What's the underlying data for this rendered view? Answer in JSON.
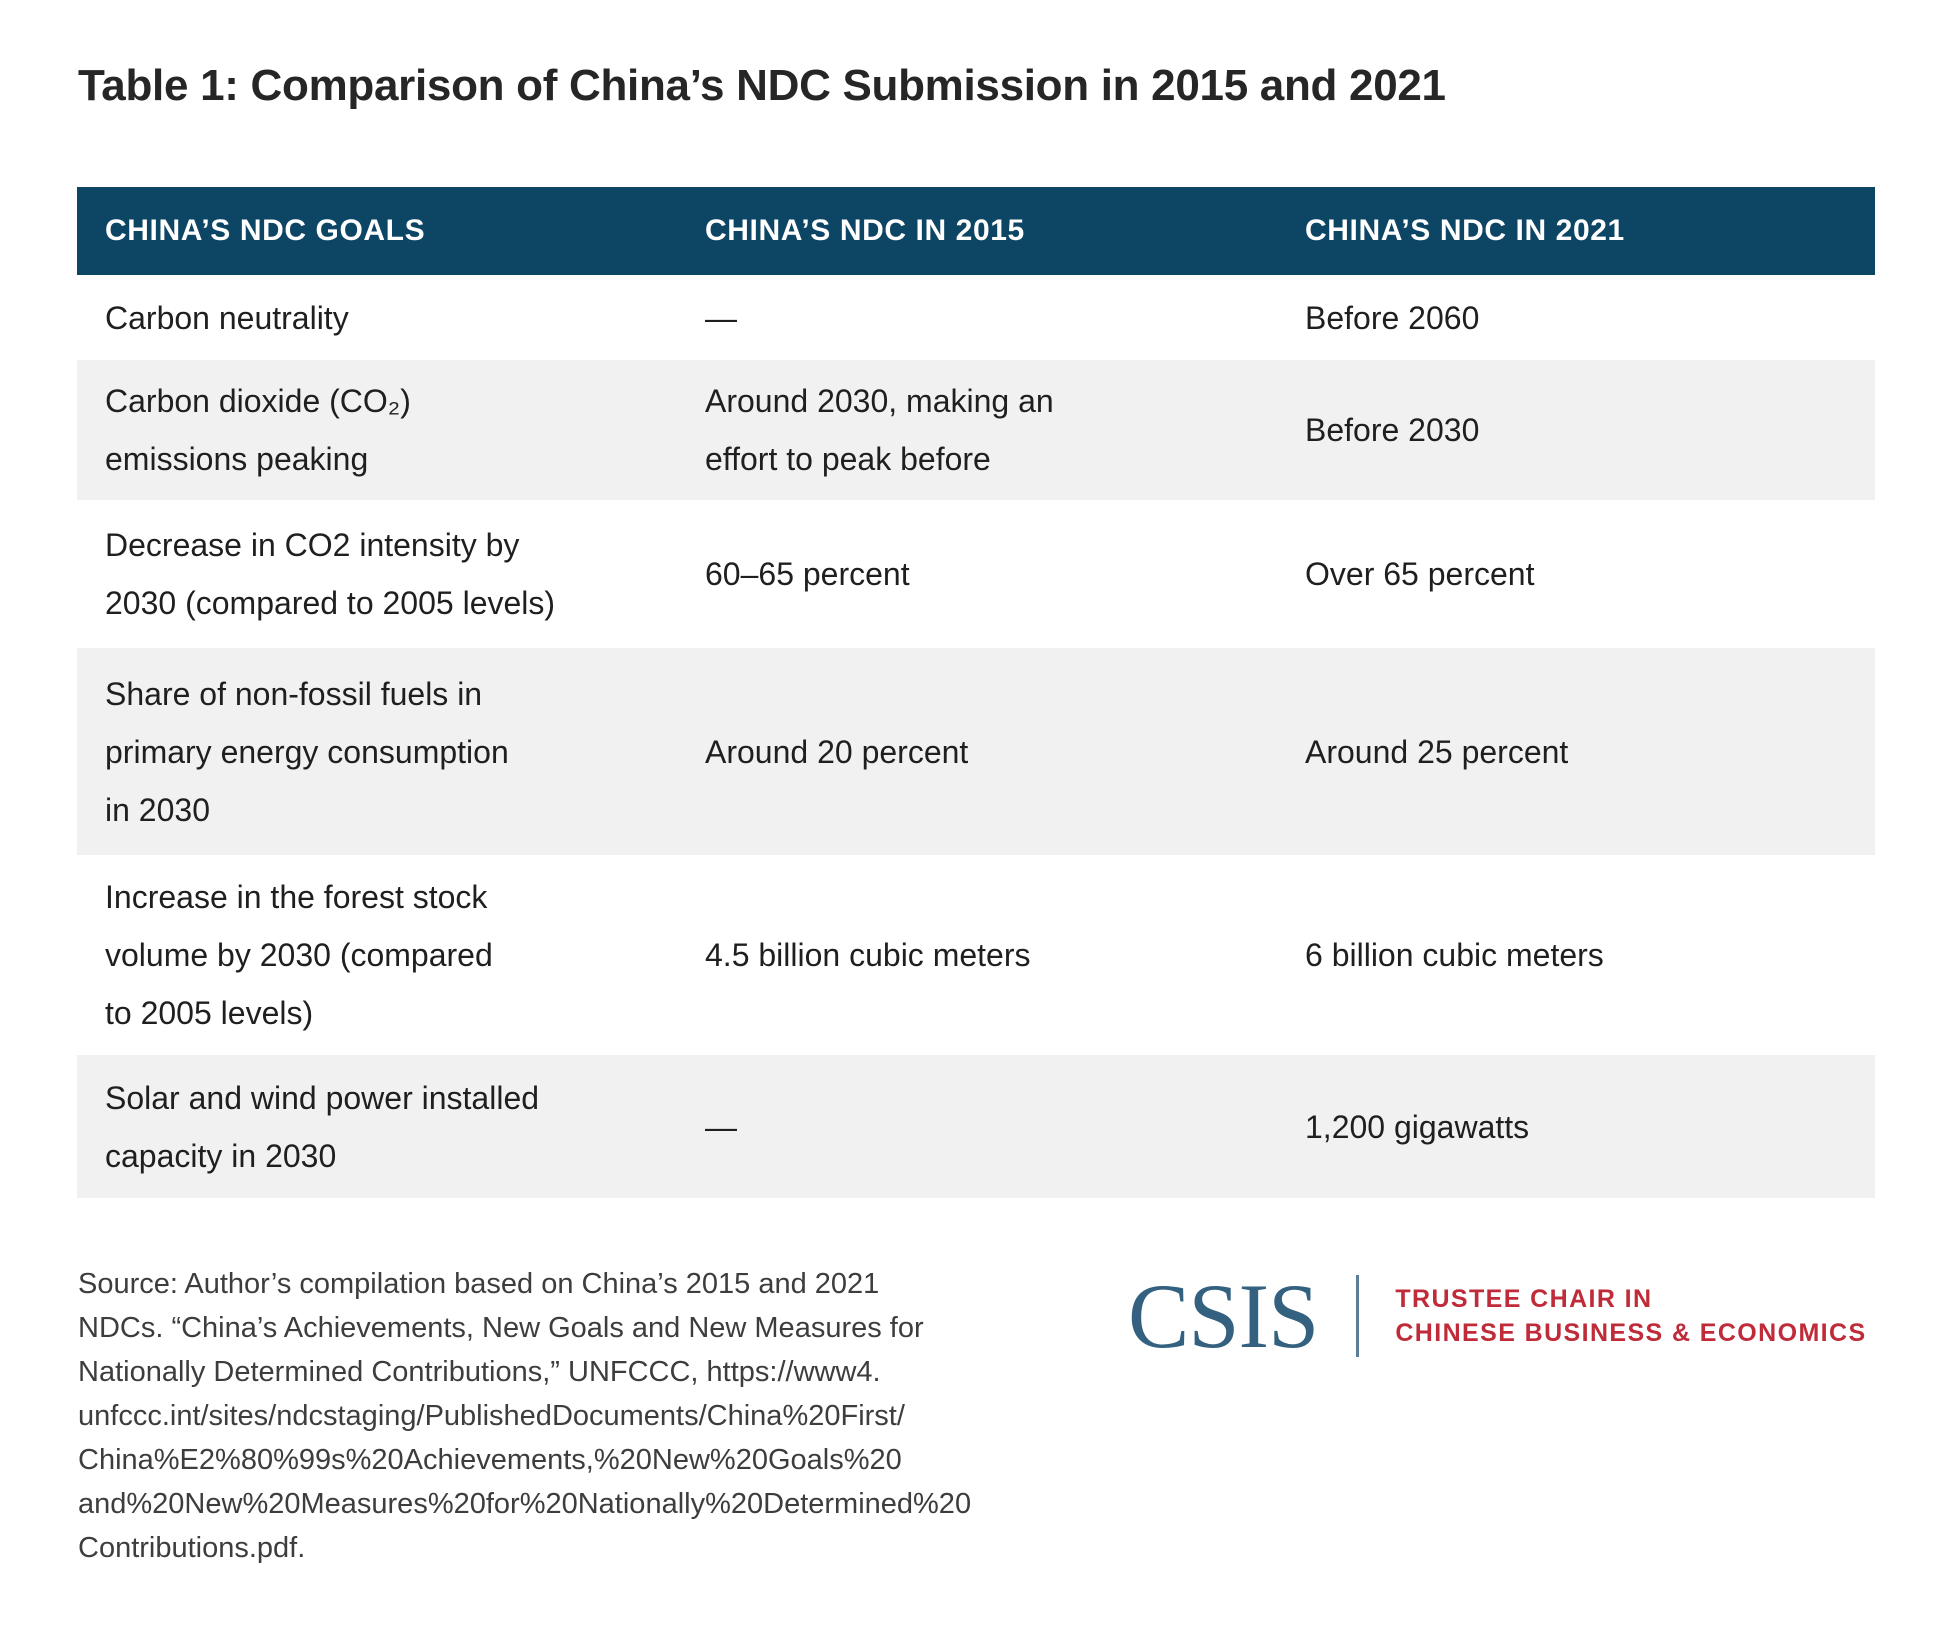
{
  "title": "Table 1: Comparison of China’s NDC Submission in 2015 and 2021",
  "table": {
    "columns": {
      "goals": "CHINA’S NDC GOALS",
      "ndc2015": "CHINA’S NDC IN 2015",
      "ndc2021": "CHINA’S NDC IN 2021"
    },
    "rows": [
      {
        "goal": [
          "Carbon neutrality"
        ],
        "ndc2015": [
          "—"
        ],
        "ndc2021": [
          "Before 2060"
        ]
      },
      {
        "goal": [
          "Carbon dioxide (CO₂)",
          "emissions peaking"
        ],
        "ndc2015": [
          "Around 2030, making an",
          "effort to peak before"
        ],
        "ndc2021": [
          "Before 2030"
        ]
      },
      {
        "goal": [
          "Decrease in CO2 intensity by",
          "2030 (compared to 2005 levels)"
        ],
        "ndc2015": [
          "60–65 percent"
        ],
        "ndc2021": [
          "Over 65 percent"
        ]
      },
      {
        "goal": [
          "Share of non-fossil fuels in",
          "primary energy consumption",
          "in 2030"
        ],
        "ndc2015": [
          "Around 20 percent"
        ],
        "ndc2021": [
          "Around 25 percent"
        ]
      },
      {
        "goal": [
          "Increase in the forest stock",
          "volume by 2030 (compared",
          "to 2005 levels)"
        ],
        "ndc2015": [
          "4.5 billion cubic meters"
        ],
        "ndc2021": [
          "6 billion cubic meters"
        ]
      },
      {
        "goal": [
          "Solar and wind power installed",
          "capacity in 2030"
        ],
        "ndc2015": [
          "—"
        ],
        "ndc2021": [
          "1,200 gigawatts"
        ]
      }
    ]
  },
  "source_note": [
    "Source: Author’s compilation based on China’s 2015 and 2021",
    "NDCs. “China’s Achievements, New Goals and New Measures for",
    "Nationally Determined Contributions,” UNFCCC, https://www4.",
    "unfccc.int/sites/ndcstaging/PublishedDocuments/China%20First/",
    "China%E2%80%99s%20Achievements,%20New%20Goals%20",
    "and%20New%20Measures%20for%20Nationally%20Determined%20",
    "Contributions.pdf."
  ],
  "logo": {
    "wordmark": "CSIS",
    "program": [
      "TRUSTEE CHAIR IN",
      "CHINESE BUSINESS & ECONOMICS"
    ]
  },
  "colors": {
    "header_bg": "#0d4564",
    "row_alt_bg": "#f1f1f2",
    "body_text": "#1f1f1f",
    "logo_blue": "#33617f",
    "logo_red": "#bf2b39"
  }
}
